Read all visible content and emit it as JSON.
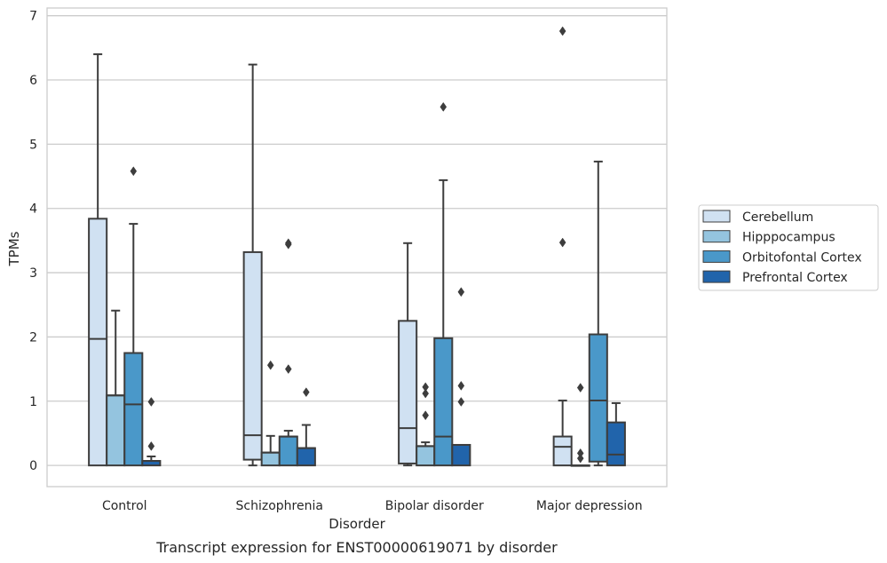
{
  "chart_data": {
    "type": "boxplot",
    "xlabel": "Disorder",
    "ylabel": "TPMs",
    "caption": "Transcript expression for ENST00000619071 by disorder",
    "ylim": [
      -0.33,
      7.12
    ],
    "yticks": [
      0,
      1,
      2,
      3,
      4,
      5,
      6,
      7
    ],
    "grid": true,
    "legend_position": "right",
    "categories": [
      "Control",
      "Schizophrenia",
      "Bipolar disorder",
      "Major depression"
    ],
    "series": [
      {
        "name": "Cerebellum",
        "color": "#d0e1f2",
        "boxes": [
          {
            "min": 0,
            "q1": 0,
            "median": 1.97,
            "q3": 3.84,
            "max": 6.4,
            "outliers": []
          },
          {
            "min": 0,
            "q1": 0.09,
            "median": 0.47,
            "q3": 3.32,
            "max": 6.24,
            "outliers": []
          },
          {
            "min": 0,
            "q1": 0.03,
            "median": 0.58,
            "q3": 2.25,
            "max": 3.46,
            "outliers": []
          },
          {
            "min": 0,
            "q1": 0,
            "median": 0.29,
            "q3": 0.45,
            "max": 1.01,
            "outliers": [
              3.47,
              6.76
            ]
          }
        ]
      },
      {
        "name": "Hipppocampus",
        "color": "#94c4df",
        "boxes": [
          {
            "min": 0,
            "q1": 0,
            "median": 1.09,
            "q3": 1.09,
            "max": 2.41,
            "outliers": []
          },
          {
            "min": 0,
            "q1": 0,
            "median": 0.2,
            "q3": 0.2,
            "max": 0.46,
            "outliers": [
              1.56
            ]
          },
          {
            "min": 0,
            "q1": 0,
            "median": 0.3,
            "q3": 0.3,
            "max": 0.36,
            "outliers": [
              0.78,
              1.12,
              1.22
            ]
          },
          {
            "min": 0,
            "q1": 0,
            "median": 0,
            "q3": 0,
            "max": 0,
            "outliers": [
              0.11,
              0.19,
              1.21
            ]
          }
        ]
      },
      {
        "name": "Orbitofontal Cortex",
        "color": "#4a98c9",
        "boxes": [
          {
            "min": 0,
            "q1": 0,
            "median": 0.95,
            "q3": 1.75,
            "max": 3.76,
            "outliers": [
              4.58
            ]
          },
          {
            "min": 0,
            "q1": 0,
            "median": 0.45,
            "q3": 0.45,
            "max": 0.54,
            "outliers": [
              1.5,
              3.44,
              3.46
            ]
          },
          {
            "min": 0,
            "q1": 0,
            "median": 0.45,
            "q3": 1.98,
            "max": 4.44,
            "outliers": [
              5.58
            ]
          },
          {
            "min": 0,
            "q1": 0.06,
            "median": 1.01,
            "q3": 2.04,
            "max": 4.73,
            "outliers": []
          }
        ]
      },
      {
        "name": "Prefrontal Cortex",
        "color": "#2164ab",
        "boxes": [
          {
            "min": 0,
            "q1": 0,
            "median": 0.07,
            "q3": 0.07,
            "max": 0.14,
            "outliers": [
              0.3,
              0.99
            ]
          },
          {
            "min": 0,
            "q1": 0,
            "median": 0.27,
            "q3": 0.27,
            "max": 0.63,
            "outliers": [
              1.14
            ]
          },
          {
            "min": 0,
            "q1": 0,
            "median": 0.32,
            "q3": 0.32,
            "max": 0.32,
            "outliers": [
              0.99,
              1.24,
              2.7
            ]
          },
          {
            "min": 0,
            "q1": 0,
            "median": 0.17,
            "q3": 0.67,
            "max": 0.97,
            "outliers": []
          }
        ]
      }
    ]
  }
}
